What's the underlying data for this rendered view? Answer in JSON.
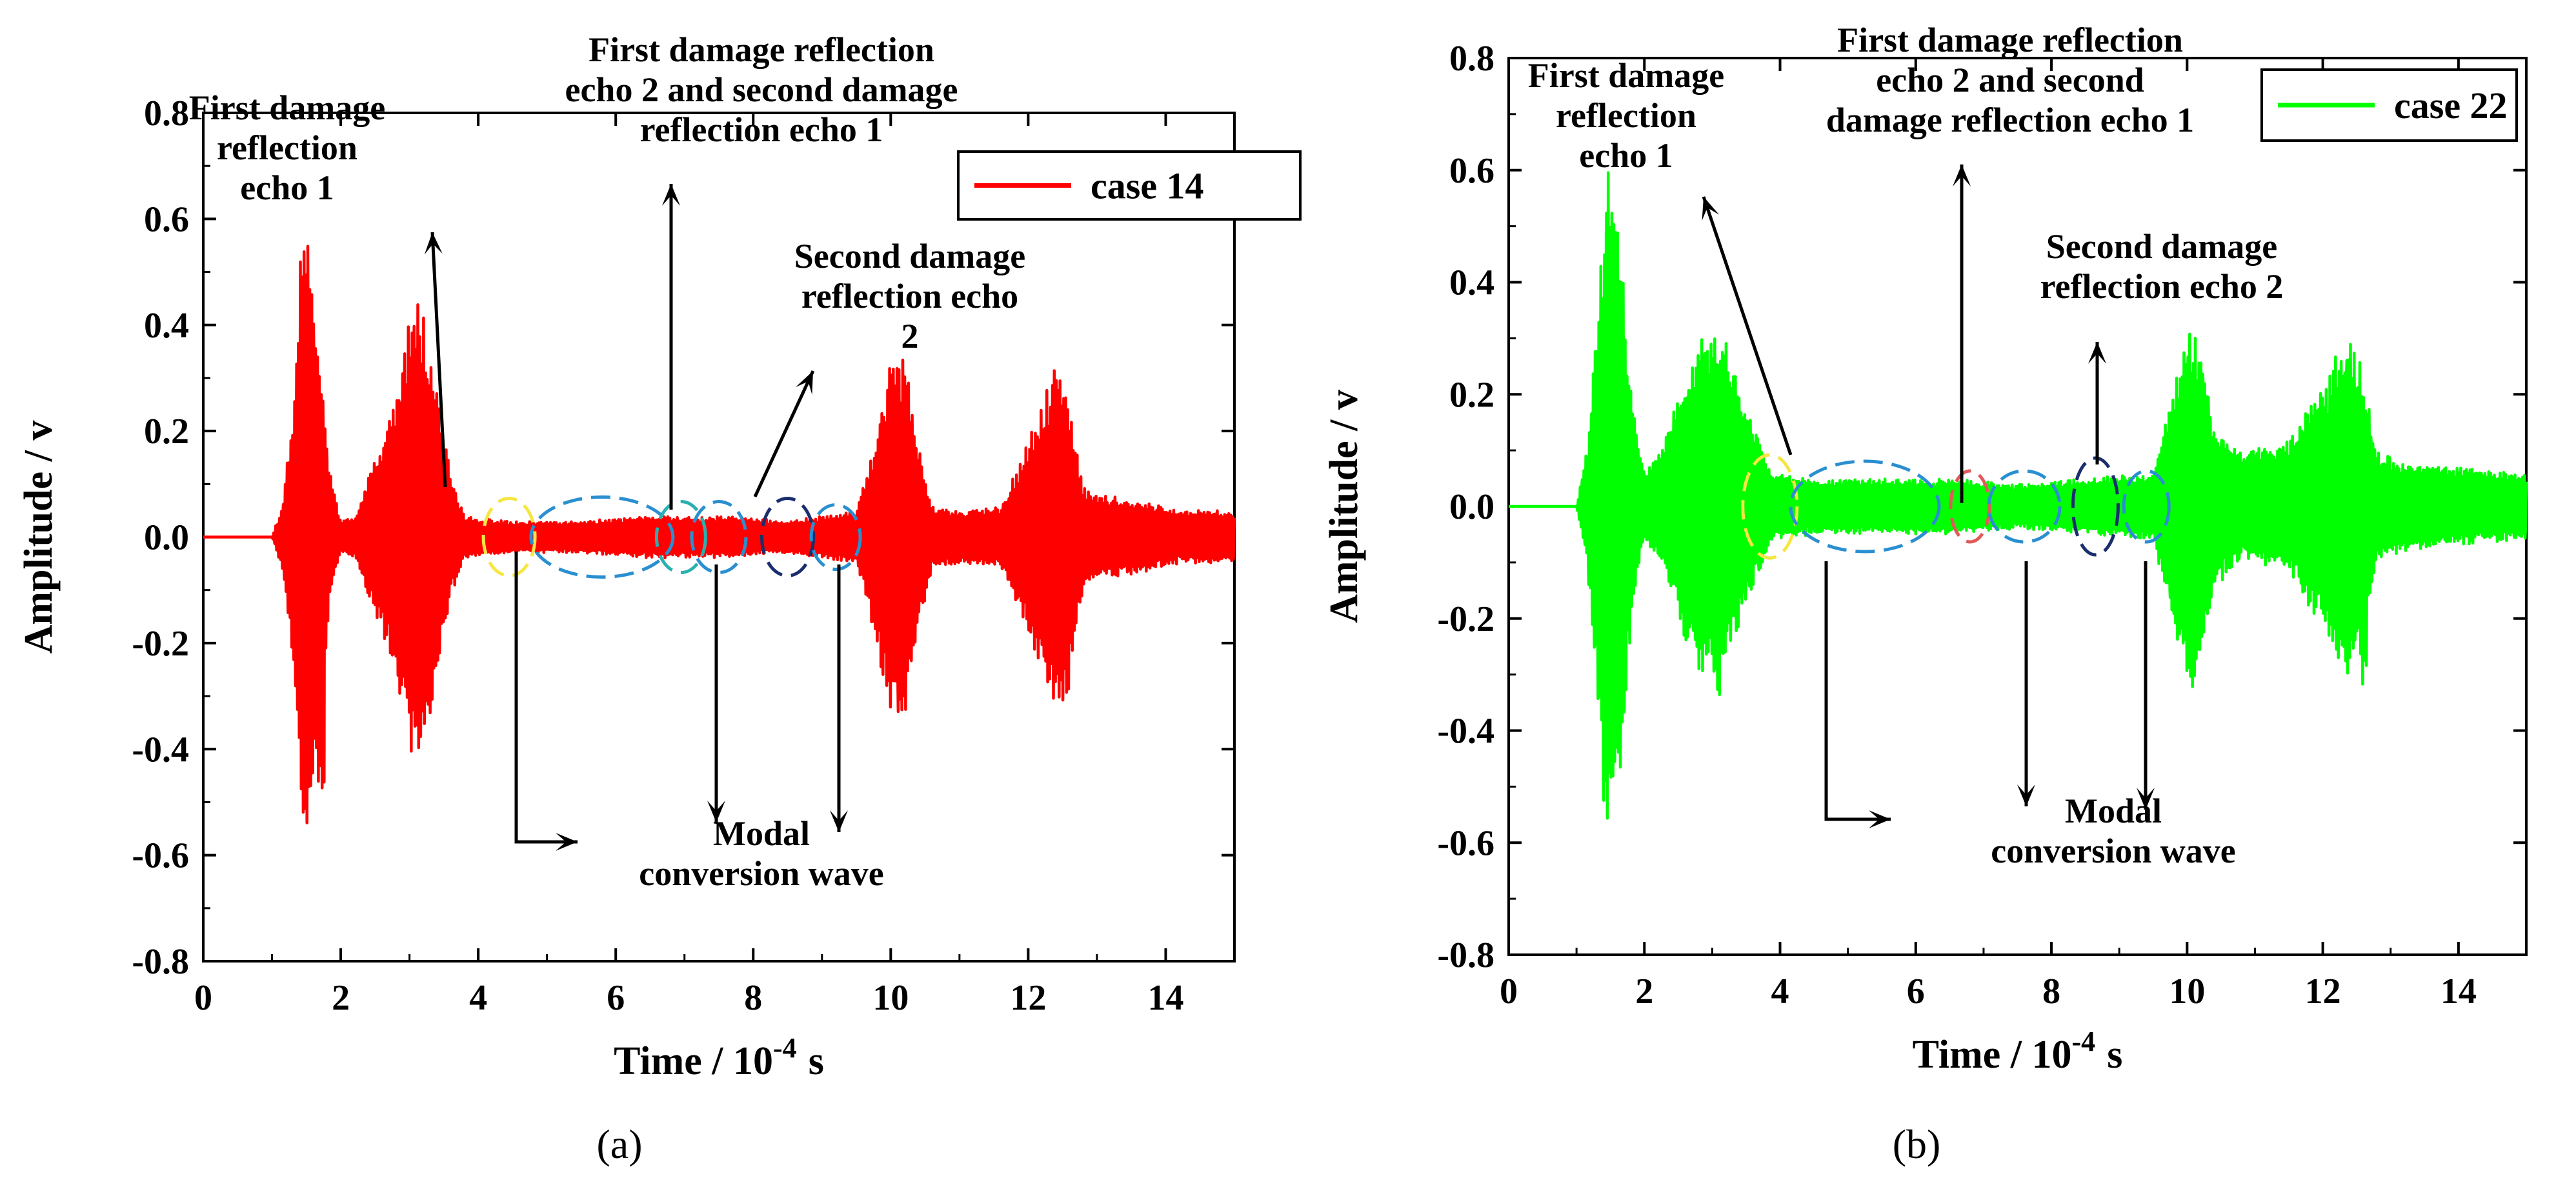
{
  "chart_data": [
    {
      "panel_label": "(a)",
      "type": "line",
      "title": "",
      "xlabel": "Time / 10",
      "xlabel_exponent": "-4",
      "xlabel_unit": "s",
      "ylabel": "Amplitude / v",
      "xlim": [
        0,
        15
      ],
      "ylim": [
        -0.8,
        0.8
      ],
      "xticks": [
        "0",
        "2",
        "4",
        "6",
        "8",
        "10",
        "12",
        "14"
      ],
      "yticks": [
        "-0.8",
        "-0.6",
        "-0.4",
        "-0.2",
        "0.0",
        "0.2",
        "0.4",
        "0.6",
        "0.8"
      ],
      "series": [
        {
          "name": "case 14",
          "color": "#ff0000",
          "envelope_points": [
            [
              0,
              0
            ],
            [
              1.0,
              0
            ],
            [
              1.15,
              0.06
            ],
            [
              1.3,
              0.25
            ],
            [
              1.45,
              0.61
            ],
            [
              1.55,
              0.6
            ],
            [
              1.7,
              0.35
            ],
            [
              1.85,
              0.12
            ],
            [
              2.0,
              0.03
            ],
            [
              2.2,
              0.04
            ],
            [
              2.5,
              0.15
            ],
            [
              2.8,
              0.27
            ],
            [
              3.05,
              0.45
            ],
            [
              3.2,
              0.43
            ],
            [
              3.4,
              0.28
            ],
            [
              3.6,
              0.12
            ],
            [
              3.8,
              0.04
            ],
            [
              4.5,
              0.03
            ],
            [
              5.5,
              0.03
            ],
            [
              6.5,
              0.04
            ],
            [
              7.5,
              0.04
            ],
            [
              8.5,
              0.03
            ],
            [
              9.5,
              0.05
            ],
            [
              9.8,
              0.2
            ],
            [
              10.0,
              0.36
            ],
            [
              10.2,
              0.35
            ],
            [
              10.4,
              0.18
            ],
            [
              10.6,
              0.06
            ],
            [
              11.0,
              0.05
            ],
            [
              11.6,
              0.06
            ],
            [
              12.0,
              0.18
            ],
            [
              12.4,
              0.34
            ],
            [
              12.6,
              0.25
            ],
            [
              12.8,
              0.1
            ],
            [
              13.0,
              0.08
            ],
            [
              13.6,
              0.07
            ],
            [
              14.2,
              0.05
            ],
            [
              14.9,
              0.05
            ]
          ],
          "negative_peaks": [
            [
              1.5,
              -0.62
            ],
            [
              1.7,
              -0.5
            ],
            [
              3.15,
              -0.45
            ],
            [
              10.1,
              -0.35
            ],
            [
              12.55,
              -0.33
            ]
          ]
        }
      ],
      "legend": {
        "position": "top-right",
        "entries": [
          "case 14"
        ]
      },
      "annotations": [
        {
          "text": "First damage\nreflection\necho 1",
          "target_x": 4.5,
          "target_y": 0.02
        },
        {
          "text": "First damage reflection\necho 2 and second damage\nreflection echo 1",
          "target_x": 6.8,
          "target_y": 0.0
        },
        {
          "text": "Second damage\nreflection echo\n2",
          "target_x": 8.6,
          "target_y": 0.0
        },
        {
          "text": "Modal\nconversion wave",
          "target_x": 7.5,
          "target_y": -0.05
        }
      ]
    },
    {
      "panel_label": "(b)",
      "type": "line",
      "title": "",
      "xlabel": "Time / 10",
      "xlabel_exponent": "-4",
      "xlabel_unit": "s",
      "ylabel": "Amplitude / v",
      "xlim": [
        0,
        15
      ],
      "ylim": [
        -0.8,
        0.8
      ],
      "xticks": [
        "0",
        "2",
        "4",
        "6",
        "8",
        "10",
        "12",
        "14"
      ],
      "yticks": [
        "-0.8",
        "-0.6",
        "-0.4",
        "-0.2",
        "0.0",
        "0.2",
        "0.4",
        "0.6",
        "0.8"
      ],
      "series": [
        {
          "name": "case 22",
          "color": "#00ff00",
          "envelope_points": [
            [
              0,
              0
            ],
            [
              1.0,
              0
            ],
            [
              1.15,
              0.1
            ],
            [
              1.3,
              0.35
            ],
            [
              1.45,
              0.62
            ],
            [
              1.6,
              0.55
            ],
            [
              1.75,
              0.3
            ],
            [
              1.9,
              0.12
            ],
            [
              2.0,
              0.06
            ],
            [
              2.3,
              0.12
            ],
            [
              2.6,
              0.25
            ],
            [
              2.9,
              0.32
            ],
            [
              3.1,
              0.34
            ],
            [
              3.3,
              0.25
            ],
            [
              3.6,
              0.15
            ],
            [
              3.9,
              0.06
            ],
            [
              4.5,
              0.05
            ],
            [
              5.5,
              0.05
            ],
            [
              6.5,
              0.05
            ],
            [
              7.5,
              0.04
            ],
            [
              8.5,
              0.05
            ],
            [
              9.5,
              0.06
            ],
            [
              9.8,
              0.22
            ],
            [
              10.0,
              0.33
            ],
            [
              10.2,
              0.3
            ],
            [
              10.4,
              0.15
            ],
            [
              10.8,
              0.1
            ],
            [
              11.5,
              0.12
            ],
            [
              12.0,
              0.22
            ],
            [
              12.4,
              0.32
            ],
            [
              12.6,
              0.25
            ],
            [
              12.8,
              0.1
            ],
            [
              13.2,
              0.08
            ],
            [
              14.0,
              0.07
            ],
            [
              14.9,
              0.06
            ]
          ],
          "negative_peaks": [
            [
              1.45,
              -0.63
            ],
            [
              1.65,
              -0.5
            ],
            [
              3.1,
              -0.35
            ],
            [
              10.1,
              -0.35
            ],
            [
              12.6,
              -0.33
            ]
          ]
        }
      ],
      "legend": {
        "position": "top-right",
        "entries": [
          "case 22"
        ]
      },
      "annotations": [
        {
          "text": "First damage\nreflection\necho 1",
          "target_x": 3.9,
          "target_y": 0.07
        },
        {
          "text": "First damage reflection\necho 2 and second\ndamage reflection echo 1",
          "target_x": 6.8,
          "target_y": 0.0
        },
        {
          "text": "Second damage\nreflection echo 2",
          "target_x": 8.6,
          "target_y": 0.0
        },
        {
          "text": "Modal\nconversion wave",
          "target_x": 7.6,
          "target_y": -0.05
        }
      ]
    }
  ]
}
